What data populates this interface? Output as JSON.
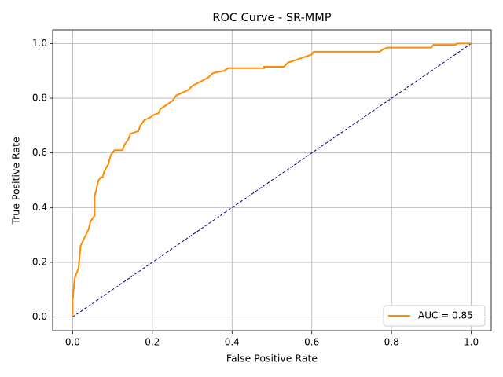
{
  "chart_data": {
    "type": "line",
    "title": "ROC Curve - SR-MMP",
    "x_label": "False Positive Rate",
    "y_label": "True Positive Rate",
    "xlim": [
      -0.05,
      1.05
    ],
    "ylim": [
      -0.05,
      1.05
    ],
    "xticks": [
      {
        "value": 0,
        "label": "0.0"
      },
      0.2,
      0.4,
      0.6,
      0.8,
      {
        "value": 1,
        "label": "1.0"
      }
    ],
    "yticks": [
      {
        "value": 0,
        "label": "0.0"
      },
      0.2,
      0.4,
      0.6,
      0.8,
      {
        "value": 1,
        "label": "1.0"
      }
    ],
    "grid": true,
    "legend": "lower right",
    "series": [
      {
        "name": "AUC = 0.85",
        "color": "#ff8c00",
        "linestyle": "solid",
        "x": [
          0,
          0,
          0.005,
          0.01,
          0.015,
          0.02,
          0.03,
          0.04,
          0.045,
          0.05,
          0.055,
          0.055,
          0.06,
          0.065,
          0.07,
          0.075,
          0.08,
          0.09,
          0.095,
          0.1,
          0.105,
          0.125,
          0.13,
          0.14,
          0.145,
          0.155,
          0.165,
          0.17,
          0.18,
          0.195,
          0.205,
          0.215,
          0.22,
          0.235,
          0.25,
          0.26,
          0.275,
          0.29,
          0.3,
          0.32,
          0.34,
          0.35,
          0.36,
          0.38,
          0.39,
          0.48,
          0.48,
          0.53,
          0.54,
          0.56,
          0.58,
          0.6,
          0.605,
          0.77,
          0.78,
          0.79,
          0.9,
          0.905,
          0.96,
          0.965,
          1
        ],
        "values": [
          0,
          0.06,
          0.14,
          0.16,
          0.18,
          0.26,
          0.29,
          0.32,
          0.35,
          0.36,
          0.37,
          0.44,
          0.47,
          0.5,
          0.51,
          0.51,
          0.535,
          0.56,
          0.59,
          0.6,
          0.61,
          0.61,
          0.63,
          0.65,
          0.67,
          0.675,
          0.68,
          0.7,
          0.72,
          0.73,
          0.74,
          0.745,
          0.76,
          0.775,
          0.79,
          0.81,
          0.82,
          0.83,
          0.845,
          0.86,
          0.875,
          0.89,
          0.895,
          0.9,
          0.91,
          0.91,
          0.915,
          0.915,
          0.93,
          0.94,
          0.95,
          0.96,
          0.97,
          0.97,
          0.98,
          0.985,
          0.985,
          0.995,
          0.995,
          1,
          1
        ]
      },
      {
        "color": "#000080",
        "linestyle": "dashed",
        "x": [
          0,
          1
        ],
        "values": [
          0,
          1
        ]
      }
    ]
  }
}
